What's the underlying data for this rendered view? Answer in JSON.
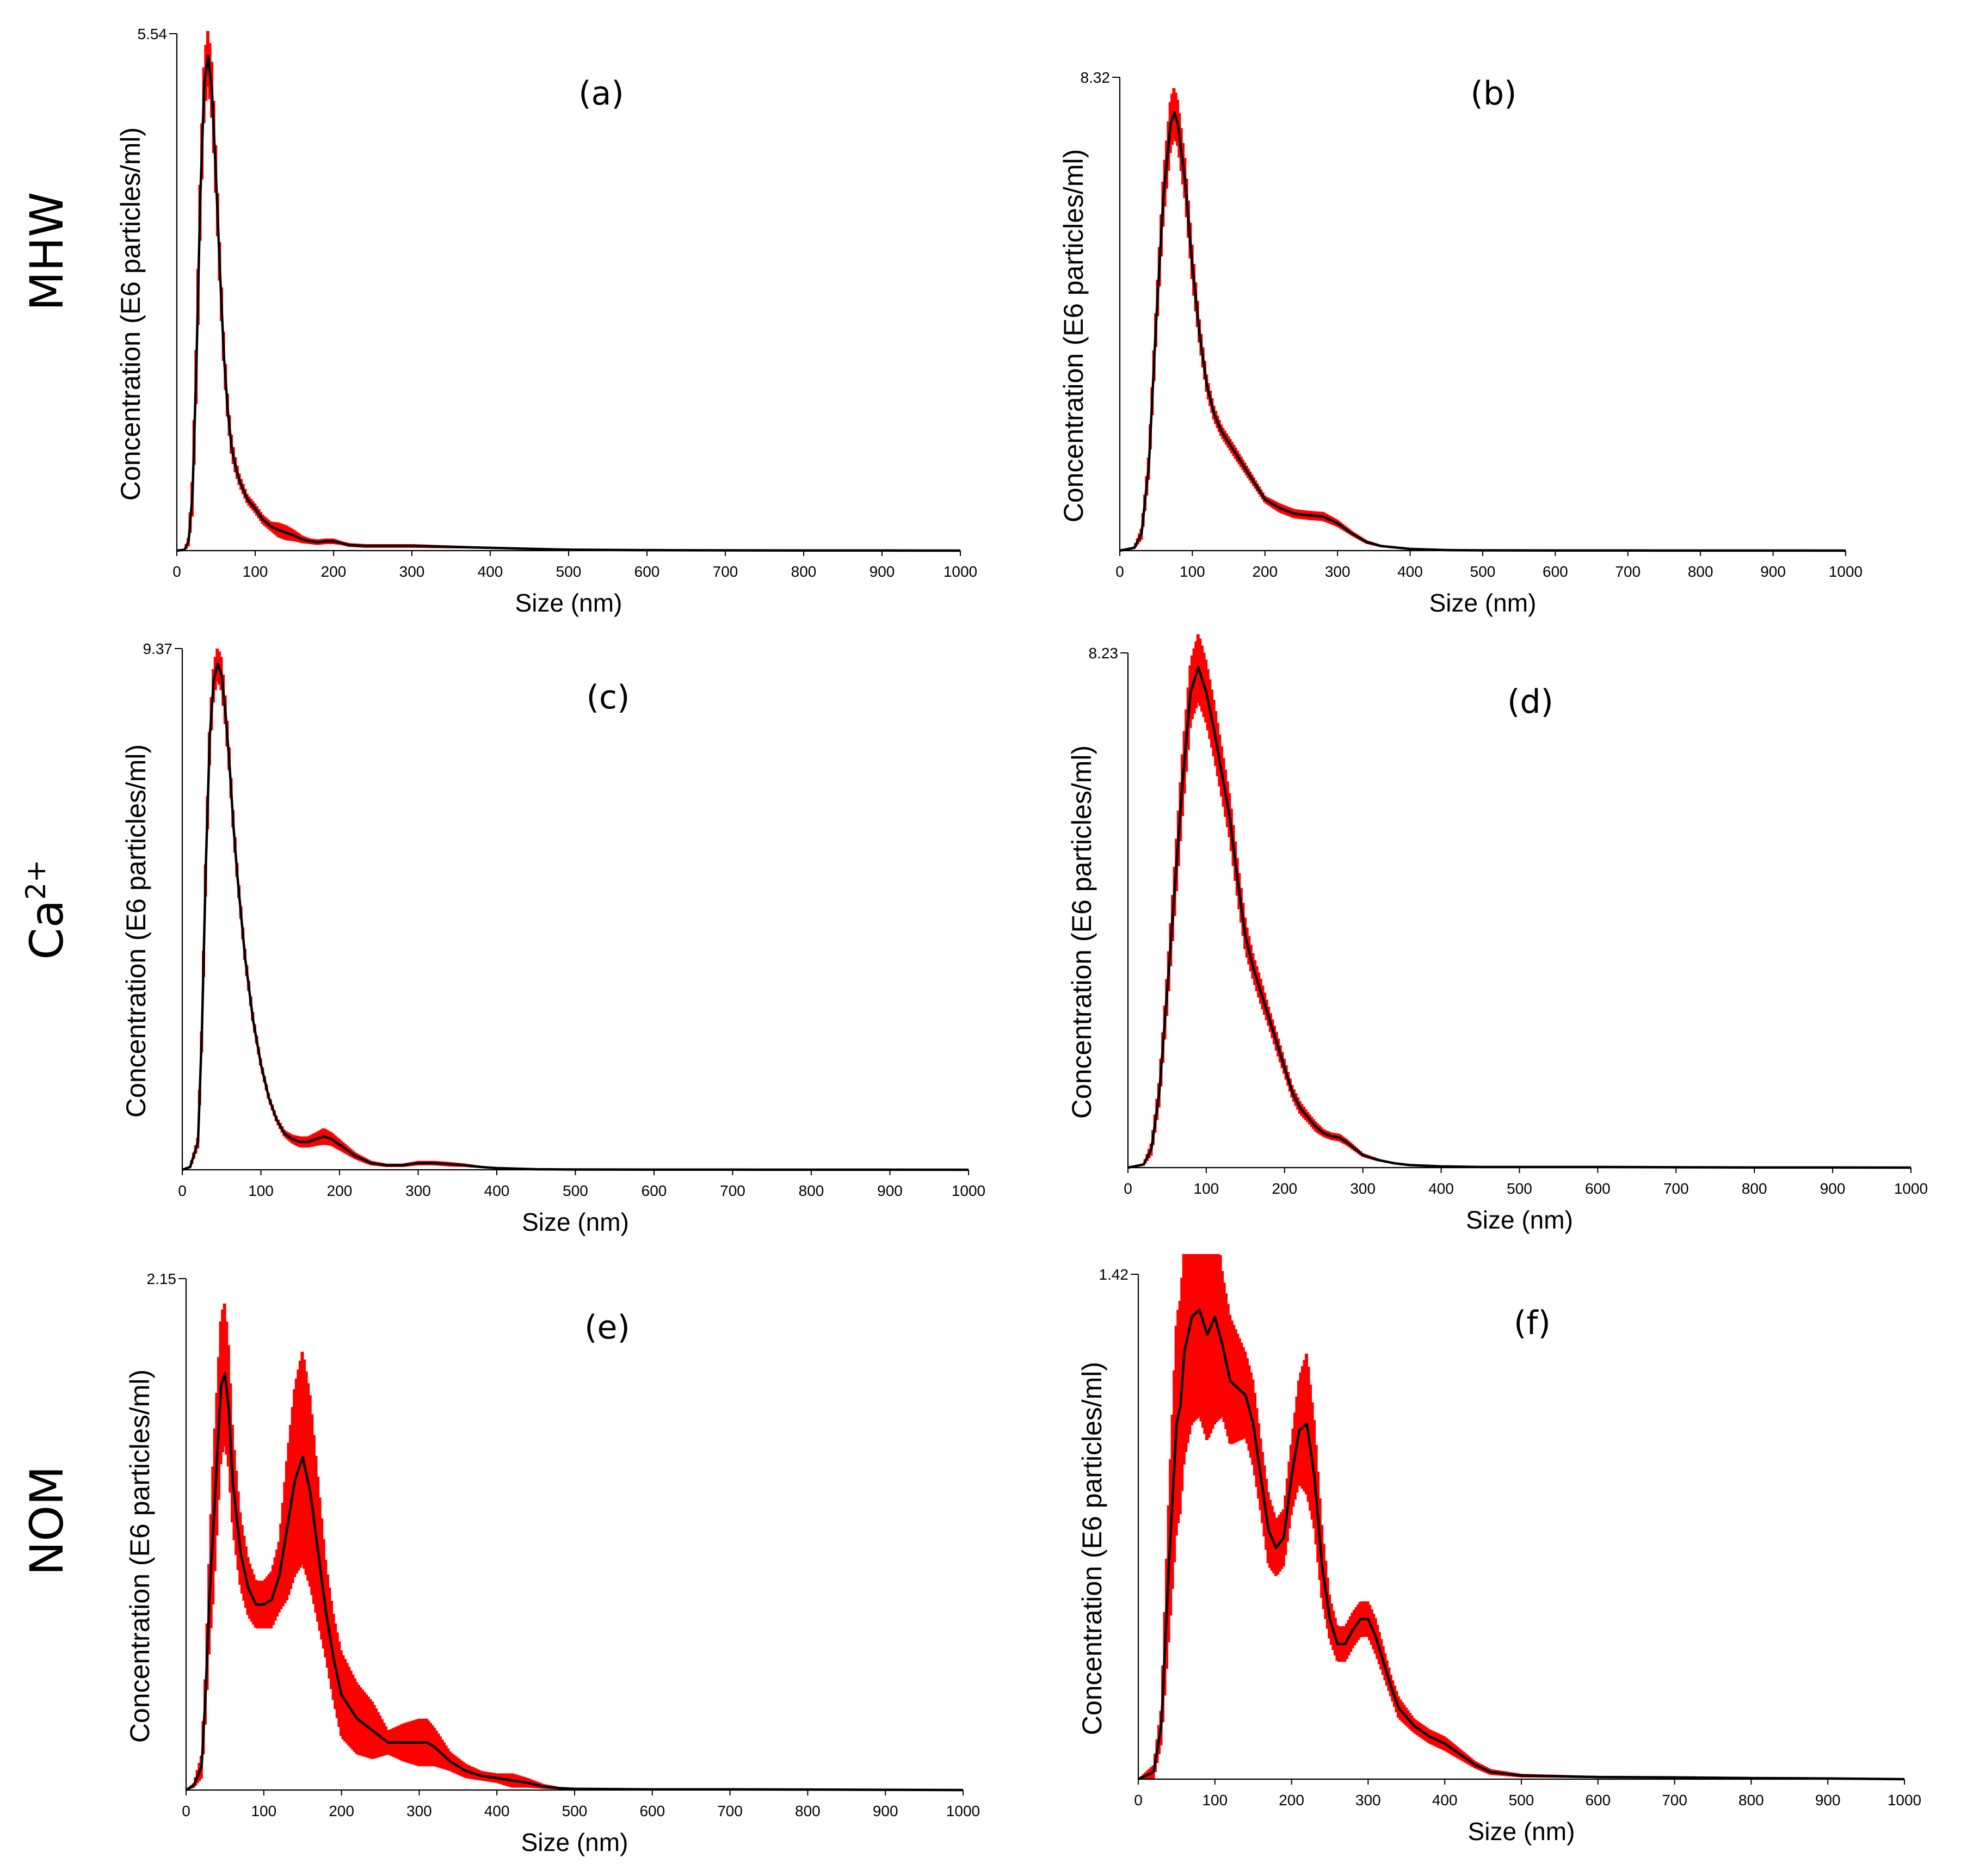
{
  "row_labels": [
    {
      "text": "MHW"
    },
    {
      "text": "Ca",
      "sup": "2+"
    },
    {
      "text": "NOM"
    }
  ],
  "colors": {
    "error_band": "#ff0000",
    "line": "#000000",
    "axis": "#000000"
  },
  "chart_data": [
    {
      "type": "line",
      "panel": "(a)",
      "row": "MHW",
      "xlabel": "Size (nm)",
      "ylabel": "Concentration (E6 particles/ml)",
      "xlim": [
        0,
        1000
      ],
      "ylim": [
        0,
        5.54
      ],
      "ymax_label": "5.54",
      "xticks": [
        0,
        100,
        200,
        300,
        400,
        500,
        600,
        700,
        800,
        900,
        1000
      ],
      "x": [
        0,
        10,
        15,
        20,
        25,
        30,
        35,
        40,
        45,
        50,
        55,
        60,
        65,
        70,
        75,
        80,
        90,
        100,
        110,
        120,
        130,
        140,
        150,
        160,
        170,
        180,
        190,
        200,
        210,
        220,
        240,
        260,
        280,
        300,
        350,
        400,
        450,
        500,
        600,
        700,
        800,
        900,
        1000
      ],
      "y": [
        0,
        0.01,
        0.1,
        0.6,
        2.0,
        3.8,
        5.0,
        5.3,
        4.9,
        4.0,
        3.0,
        2.1,
        1.5,
        1.1,
        0.9,
        0.75,
        0.55,
        0.45,
        0.33,
        0.26,
        0.22,
        0.19,
        0.16,
        0.12,
        0.1,
        0.09,
        0.1,
        0.1,
        0.08,
        0.06,
        0.05,
        0.05,
        0.05,
        0.05,
        0.04,
        0.03,
        0.02,
        0.01,
        0.005,
        0.003,
        0.002,
        0.001,
        0
      ],
      "err": [
        0,
        0.01,
        0.05,
        0.2,
        0.3,
        0.3,
        0.3,
        0.3,
        0.3,
        0.25,
        0.2,
        0.15,
        0.12,
        0.1,
        0.08,
        0.06,
        0.05,
        0.05,
        0.05,
        0.05,
        0.08,
        0.08,
        0.06,
        0.04,
        0.03,
        0.03,
        0.03,
        0.03,
        0.02,
        0.02,
        0.02,
        0.02,
        0.02,
        0.02,
        0.015,
        0.01,
        0.01,
        0.005,
        0.002,
        0.001,
        0.001,
        0.001,
        0
      ]
    },
    {
      "type": "line",
      "panel": "(b)",
      "row": "MHW",
      "xlabel": "Size (nm)",
      "ylabel": "Concentration (E6 particles/ml)",
      "xlim": [
        0,
        1000
      ],
      "ylim": [
        0,
        8.32
      ],
      "ymax_label": "8.32",
      "xticks": [
        0,
        100,
        200,
        300,
        400,
        500,
        600,
        700,
        800,
        900,
        1000
      ],
      "x": [
        0,
        20,
        30,
        40,
        50,
        60,
        70,
        75,
        80,
        90,
        100,
        110,
        120,
        130,
        140,
        150,
        160,
        180,
        200,
        220,
        240,
        260,
        280,
        300,
        320,
        340,
        360,
        400,
        450,
        500,
        600,
        700,
        800,
        900,
        1000
      ],
      "y": [
        0,
        0.05,
        0.3,
        1.5,
        4.0,
        6.2,
        7.5,
        7.7,
        7.5,
        6.5,
        5.0,
        3.8,
        2.9,
        2.4,
        2.1,
        1.9,
        1.7,
        1.3,
        0.9,
        0.75,
        0.65,
        0.62,
        0.6,
        0.48,
        0.3,
        0.15,
        0.08,
        0.03,
        0.01,
        0.005,
        0.003,
        0.002,
        0.001,
        0.001,
        0
      ],
      "err": [
        0,
        0.02,
        0.1,
        0.2,
        0.3,
        0.4,
        0.45,
        0.45,
        0.4,
        0.35,
        0.3,
        0.2,
        0.15,
        0.12,
        0.1,
        0.1,
        0.1,
        0.08,
        0.06,
        0.08,
        0.08,
        0.08,
        0.08,
        0.06,
        0.04,
        0.03,
        0.02,
        0.01,
        0.005,
        0.003,
        0.002,
        0.001,
        0.001,
        0.001,
        0
      ]
    },
    {
      "type": "line",
      "panel": "(c)",
      "row": "Ca2+",
      "xlabel": "Size (nm)",
      "ylabel": "Concentration (E6 particles/ml)",
      "xlim": [
        0,
        1000
      ],
      "ylim": [
        0,
        9.37
      ],
      "ymax_label": "9.37",
      "xticks": [
        0,
        100,
        200,
        300,
        400,
        500,
        600,
        700,
        800,
        900,
        1000
      ],
      "x": [
        0,
        10,
        20,
        25,
        30,
        35,
        40,
        45,
        50,
        55,
        60,
        65,
        70,
        80,
        90,
        100,
        110,
        120,
        130,
        140,
        150,
        160,
        170,
        180,
        190,
        200,
        220,
        240,
        260,
        280,
        300,
        320,
        340,
        360,
        380,
        400,
        450,
        500,
        600,
        700,
        800,
        900,
        1000
      ],
      "y": [
        0,
        0.05,
        0.5,
        2.5,
        5.5,
        7.8,
        8.8,
        9.1,
        8.9,
        8.2,
        7.3,
        6.2,
        5.3,
        3.8,
        2.7,
        1.9,
        1.3,
        0.9,
        0.65,
        0.55,
        0.5,
        0.5,
        0.55,
        0.6,
        0.55,
        0.45,
        0.25,
        0.12,
        0.08,
        0.08,
        0.12,
        0.12,
        0.1,
        0.08,
        0.05,
        0.03,
        0.01,
        0.005,
        0.003,
        0.002,
        0.001,
        0.001,
        0
      ],
      "err": [
        0,
        0.02,
        0.1,
        0.2,
        0.3,
        0.3,
        0.3,
        0.3,
        0.3,
        0.25,
        0.2,
        0.15,
        0.12,
        0.1,
        0.08,
        0.06,
        0.05,
        0.05,
        0.06,
        0.08,
        0.1,
        0.1,
        0.12,
        0.15,
        0.12,
        0.1,
        0.06,
        0.04,
        0.03,
        0.03,
        0.04,
        0.04,
        0.04,
        0.03,
        0.02,
        0.01,
        0.005,
        0.003,
        0.002,
        0.001,
        0.001,
        0.001,
        0
      ]
    },
    {
      "type": "line",
      "panel": "(d)",
      "row": "Ca2+",
      "xlabel": "Size (nm)",
      "ylabel": "Concentration (E6 particles/ml)",
      "xlim": [
        0,
        1000
      ],
      "ylim": [
        0,
        8.23
      ],
      "ymax_label": "8.23",
      "xticks": [
        0,
        100,
        200,
        300,
        400,
        500,
        600,
        700,
        800,
        900,
        1000
      ],
      "x": [
        0,
        20,
        30,
        40,
        50,
        60,
        70,
        80,
        90,
        100,
        110,
        120,
        130,
        140,
        150,
        160,
        170,
        180,
        190,
        200,
        210,
        220,
        230,
        240,
        250,
        260,
        270,
        280,
        290,
        300,
        320,
        340,
        360,
        400,
        450,
        500,
        600,
        700,
        800,
        900,
        1000
      ],
      "y": [
        0,
        0.05,
        0.3,
        1.2,
        2.8,
        4.5,
        6.2,
        7.6,
        8.0,
        7.6,
        7.0,
        6.3,
        5.6,
        4.6,
        3.7,
        3.2,
        2.8,
        2.4,
        2.0,
        1.6,
        1.2,
        0.95,
        0.8,
        0.65,
        0.55,
        0.5,
        0.48,
        0.4,
        0.3,
        0.2,
        0.12,
        0.07,
        0.04,
        0.02,
        0.01,
        0.01,
        0.01,
        0.005,
        0.003,
        0.002,
        0
      ],
      "err": [
        0,
        0.02,
        0.1,
        0.2,
        0.3,
        0.4,
        0.5,
        0.5,
        0.55,
        0.5,
        0.45,
        0.4,
        0.35,
        0.3,
        0.25,
        0.2,
        0.2,
        0.15,
        0.15,
        0.12,
        0.1,
        0.1,
        0.08,
        0.08,
        0.06,
        0.06,
        0.06,
        0.05,
        0.04,
        0.03,
        0.02,
        0.01,
        0.01,
        0.005,
        0.003,
        0.002,
        0.002,
        0.001,
        0.001,
        0.001,
        0
      ]
    },
    {
      "type": "line",
      "panel": "(e)",
      "row": "NOM",
      "xlabel": "Size (nm)",
      "ylabel": "Concentration (E6 particles/ml)",
      "xlim": [
        0,
        1000
      ],
      "ylim": [
        0,
        2.15
      ],
      "ymax_label": "2.15",
      "xticks": [
        0,
        100,
        200,
        300,
        400,
        500,
        600,
        700,
        800,
        900,
        1000
      ],
      "x": [
        0,
        10,
        20,
        25,
        30,
        35,
        40,
        45,
        50,
        55,
        60,
        70,
        80,
        90,
        100,
        110,
        120,
        130,
        140,
        150,
        160,
        170,
        180,
        190,
        200,
        220,
        240,
        260,
        280,
        300,
        310,
        320,
        340,
        360,
        380,
        400,
        420,
        440,
        460,
        480,
        500,
        600,
        700,
        800,
        900,
        1000
      ],
      "y": [
        0,
        0.02,
        0.1,
        0.4,
        0.8,
        1.1,
        1.4,
        1.7,
        1.75,
        1.6,
        1.3,
        1.0,
        0.85,
        0.78,
        0.78,
        0.8,
        0.9,
        1.1,
        1.3,
        1.4,
        1.25,
        1.0,
        0.75,
        0.55,
        0.4,
        0.3,
        0.25,
        0.2,
        0.2,
        0.2,
        0.2,
        0.18,
        0.12,
        0.08,
        0.06,
        0.05,
        0.04,
        0.03,
        0.015,
        0.008,
        0.005,
        0.003,
        0.003,
        0.002,
        0.001,
        0
      ],
      "err": [
        0,
        0.01,
        0.05,
        0.1,
        0.2,
        0.3,
        0.3,
        0.3,
        0.3,
        0.25,
        0.2,
        0.15,
        0.12,
        0.1,
        0.1,
        0.12,
        0.15,
        0.3,
        0.4,
        0.45,
        0.4,
        0.3,
        0.2,
        0.18,
        0.18,
        0.15,
        0.12,
        0.05,
        0.08,
        0.1,
        0.1,
        0.08,
        0.04,
        0.03,
        0.02,
        0.02,
        0.03,
        0.02,
        0.01,
        0.005,
        0.003,
        0.002,
        0.002,
        0.001,
        0.001,
        0
      ]
    },
    {
      "type": "line",
      "panel": "(f)",
      "row": "NOM",
      "xlabel": "Size (nm)",
      "ylabel": "Concentration (E6 particles/ml)",
      "xlim": [
        0,
        1000
      ],
      "ylim": [
        0,
        1.42
      ],
      "ymax_label": "1.42",
      "xticks": [
        0,
        100,
        200,
        300,
        400,
        500,
        600,
        700,
        800,
        900,
        1000
      ],
      "x": [
        0,
        20,
        30,
        40,
        50,
        55,
        60,
        70,
        80,
        90,
        100,
        110,
        120,
        130,
        140,
        150,
        160,
        170,
        180,
        190,
        200,
        210,
        220,
        230,
        240,
        250,
        260,
        270,
        280,
        290,
        300,
        310,
        320,
        330,
        340,
        360,
        380,
        400,
        420,
        440,
        460,
        500,
        550,
        600,
        700,
        800,
        900,
        1000
      ],
      "y": [
        0,
        0.02,
        0.15,
        0.6,
        1.0,
        1.05,
        1.2,
        1.3,
        1.32,
        1.25,
        1.3,
        1.22,
        1.12,
        1.1,
        1.08,
        1.0,
        0.85,
        0.7,
        0.65,
        0.68,
        0.85,
        0.98,
        1.0,
        0.85,
        0.6,
        0.45,
        0.38,
        0.38,
        0.42,
        0.45,
        0.45,
        0.4,
        0.33,
        0.26,
        0.2,
        0.15,
        0.12,
        0.1,
        0.07,
        0.04,
        0.02,
        0.01,
        0.008,
        0.006,
        0.005,
        0.003,
        0.002,
        0
      ],
      "err": [
        0,
        0.02,
        0.05,
        0.2,
        0.3,
        0.3,
        0.3,
        0.3,
        0.3,
        0.3,
        0.3,
        0.2,
        0.18,
        0.15,
        0.12,
        0.12,
        0.1,
        0.1,
        0.08,
        0.08,
        0.1,
        0.15,
        0.2,
        0.15,
        0.1,
        0.06,
        0.05,
        0.05,
        0.05,
        0.05,
        0.05,
        0.05,
        0.04,
        0.03,
        0.03,
        0.02,
        0.02,
        0.02,
        0.015,
        0.01,
        0.008,
        0.005,
        0.004,
        0.003,
        0.003,
        0.002,
        0.001,
        0
      ]
    }
  ]
}
